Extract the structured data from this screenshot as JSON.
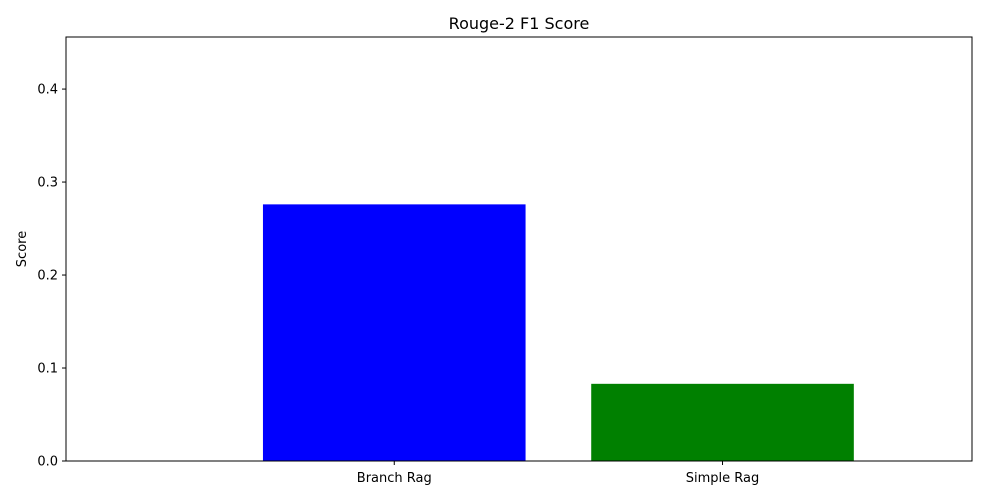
{
  "chart_data": {
    "type": "bar",
    "title": "Rouge-2 F1 Score",
    "xlabel": "",
    "ylabel": "Score",
    "categories": [
      "Branch Rag",
      "Simple Rag"
    ],
    "values": [
      0.276,
      0.083
    ],
    "colors": [
      "#0000ff",
      "#008000"
    ],
    "ylim": [
      0,
      0.456
    ],
    "yticks": [
      0.0,
      0.1,
      0.2,
      0.3,
      0.4
    ],
    "ytick_labels": [
      "0.0",
      "0.1",
      "0.2",
      "0.3",
      "0.4"
    ],
    "grid": false,
    "legend": "none"
  }
}
